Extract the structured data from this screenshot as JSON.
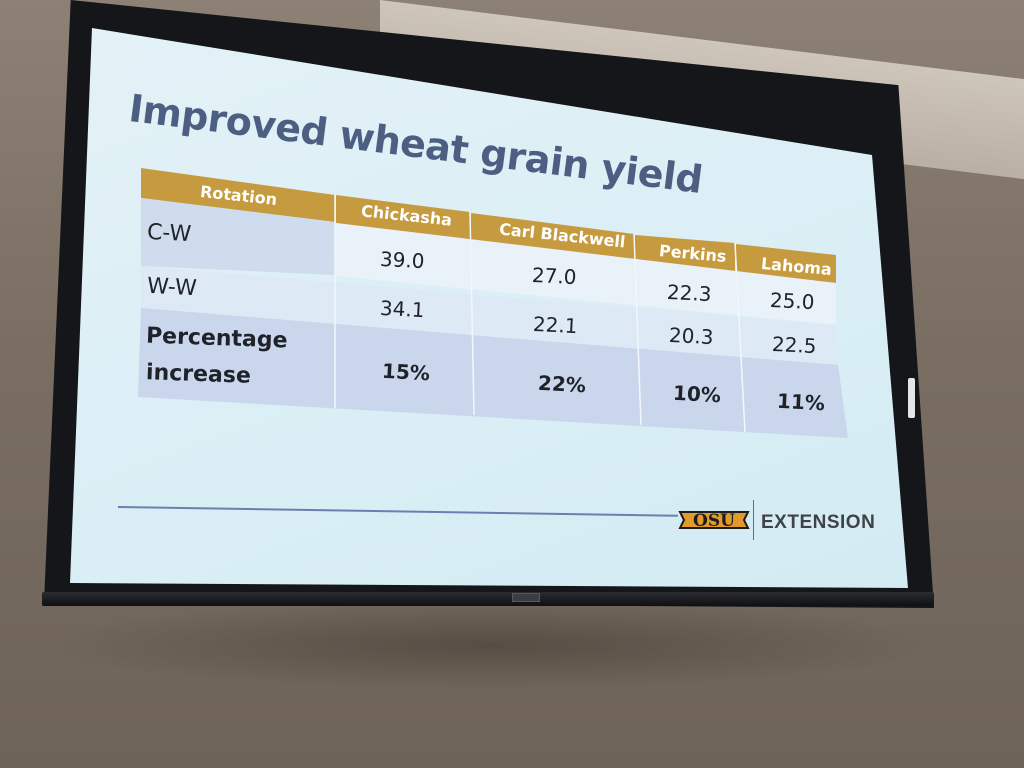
{
  "slide": {
    "title": "Improved wheat grain yield",
    "table": {
      "headers": [
        "Rotation",
        "Chickasha",
        "Carl Blackwell",
        "Perkins",
        "Lahoma"
      ],
      "rows": [
        {
          "label": "C-W",
          "values": [
            "39.0",
            "27.0",
            "22.3",
            "25.0"
          ]
        },
        {
          "label": "W-W",
          "values": [
            "34.1",
            "22.1",
            "20.3",
            "22.5"
          ]
        },
        {
          "label_line1": "Percentage",
          "label_line2": "increase",
          "values": [
            "15%",
            "22%",
            "10%",
            "11%"
          ]
        }
      ]
    },
    "footer": {
      "logo_text": "OSU",
      "extension": "EXTENSION"
    }
  },
  "colors": {
    "header_gold": "#c69a3f",
    "row_light": "#e6f1f8",
    "row_mid": "#cad7ec",
    "title": "#4c5f82",
    "slide_bg": "#d9eef5",
    "logo_orange": "#e29a2b"
  }
}
